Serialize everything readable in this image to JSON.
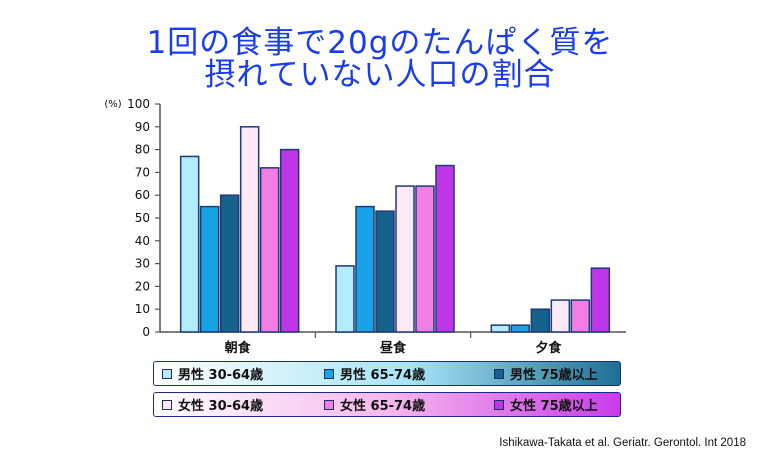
{
  "title_line1": "1回の食事で20gのたんぱく質を",
  "title_line2": "摂れていない人口の割合",
  "chart_data": {
    "type": "bar",
    "title": "1回の食事で20gのたんぱく質を摂れていない人口の割合",
    "ylabel": "(%)",
    "ylim": [
      0,
      100
    ],
    "yticks": [
      0,
      10,
      20,
      30,
      40,
      50,
      60,
      70,
      80,
      90,
      100
    ],
    "categories": [
      "朝食",
      "昼食",
      "夕食"
    ],
    "series": [
      {
        "name": "男性 30-64歳",
        "color": "#b3ecfc",
        "values": [
          77,
          29,
          3
        ]
      },
      {
        "name": "男性 65-74歳",
        "color": "#18a3e6",
        "values": [
          55,
          55,
          3
        ]
      },
      {
        "name": "男性 75歳以上",
        "color": "#17628c",
        "values": [
          60,
          53,
          10
        ]
      },
      {
        "name": "女性 30-64歳",
        "color": "#fde9f8",
        "values": [
          90,
          64,
          14
        ]
      },
      {
        "name": "女性 65-74歳",
        "color": "#f27ee5",
        "values": [
          72,
          64,
          14
        ]
      },
      {
        "name": "女性 75歳以上",
        "color": "#c035e8",
        "values": [
          80,
          73,
          28
        ]
      }
    ]
  },
  "legend": {
    "male": [
      "男性 30-64歳",
      "男性 65-74歳",
      "男性 75歳以上"
    ],
    "female": [
      "女性 30-64歳",
      "女性 65-74歳",
      "女性 75歳以上"
    ]
  },
  "citation": "Ishikawa-Takata et al. Geriatr. Gerontol. Int 2018"
}
